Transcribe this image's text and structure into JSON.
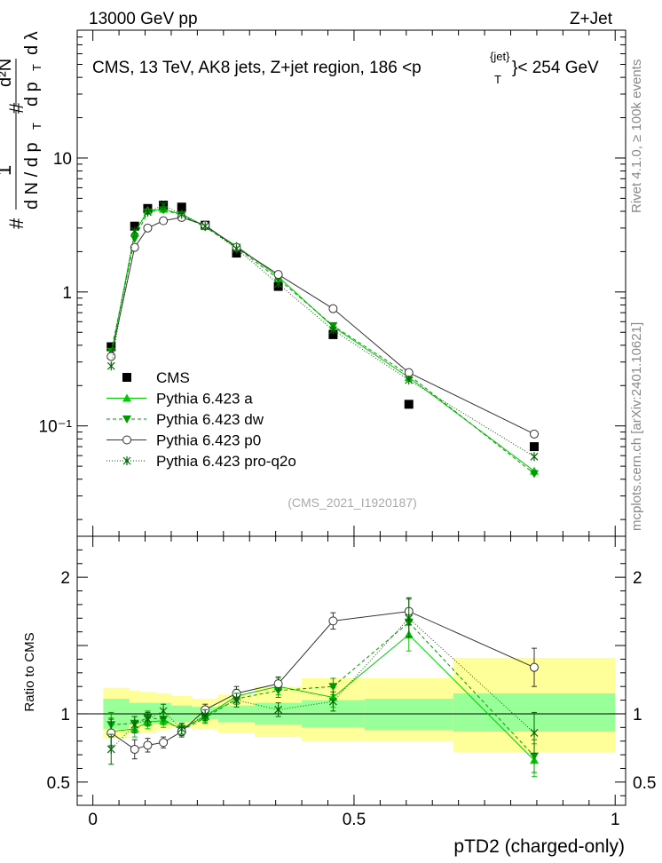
{
  "header": {
    "left": "13000 GeV pp",
    "right": "Z+Jet"
  },
  "side": {
    "rivet": "Rivet 4.1.0, ≥ 100k events",
    "mcplots": "mcplots.cern.ch [arXiv:2401.10621]"
  },
  "watermark": "(CMS_2021_I1920187)",
  "colors": {
    "cms": "#000000",
    "a": "#00cc00",
    "dw": "#009900",
    "p0": "#333333",
    "q2o": "#006600",
    "band_outer": "#ffff99",
    "band_inner": "#99ff99"
  },
  "chart_data": {
    "type": "line",
    "title": "CMS, 13 TeV, AK8 jets, Z+jet region, 186 <p_T^{jet} < 254 GeV",
    "title_parts": {
      "prefix": "CMS, 13 TeV, AK8 jets, Z+jet region, 186 <p",
      "sup": "{jet}",
      "sub": "T",
      "suffix": "}< 254 GeV"
    },
    "ylabel": "1/dN/dp_T # d^2N/dp_T dλ",
    "ylabel_parts": {
      "hash1": "#",
      "hash2": "#",
      "one": "1",
      "dN": "d N / d p",
      "T1": "T",
      "d2N": "d²N",
      "dpT": "d p",
      "T2": "T",
      "dlam": "d λ"
    },
    "xlabel": "pTD2 (charged-only)",
    "xlim": [
      -0.03,
      1.02
    ],
    "main": {
      "yscale": "log",
      "ylim": [
        0.015,
        90
      ],
      "yticks": [
        {
          "v": 0.1,
          "label": "10⁻¹"
        },
        {
          "v": 1,
          "label": "1"
        },
        {
          "v": 10,
          "label": "10"
        }
      ]
    },
    "ratio": {
      "ylabel": "Ratio to CMS",
      "ylim": [
        0.33,
        2.3
      ],
      "yticks": [
        {
          "v": 0.5,
          "label": "0.5"
        },
        {
          "v": 1,
          "label": "1"
        },
        {
          "v": 2,
          "label": "2"
        }
      ]
    },
    "xticks": [
      {
        "v": 0,
        "label": "0"
      },
      {
        "v": 0.5,
        "label": "0.5"
      },
      {
        "v": 1,
        "label": "1"
      }
    ],
    "x": [
      0.035,
      0.08,
      0.105,
      0.135,
      0.17,
      0.215,
      0.275,
      0.355,
      0.46,
      0.605,
      0.845
    ],
    "bins": [
      0.02,
      0.07,
      0.09,
      0.12,
      0.15,
      0.19,
      0.24,
      0.31,
      0.4,
      0.52,
      0.69,
      1.0
    ],
    "band_inner": [
      [
        0.89,
        1.11
      ],
      [
        0.93,
        1.08
      ],
      [
        0.93,
        1.08
      ],
      [
        0.93,
        1.08
      ],
      [
        0.94,
        1.06
      ],
      [
        0.96,
        1.05
      ],
      [
        0.94,
        1.06
      ],
      [
        0.92,
        1.08
      ],
      [
        0.9,
        1.1
      ],
      [
        0.88,
        1.11
      ],
      [
        0.87,
        1.15
      ]
    ],
    "band_outer": [
      [
        0.82,
        1.19
      ],
      [
        0.86,
        1.17
      ],
      [
        0.86,
        1.16
      ],
      [
        0.88,
        1.15
      ],
      [
        0.9,
        1.13
      ],
      [
        0.89,
        1.11
      ],
      [
        0.86,
        1.14
      ],
      [
        0.83,
        1.2
      ],
      [
        0.8,
        1.26
      ],
      [
        0.8,
        1.26
      ],
      [
        0.72,
        1.41
      ]
    ],
    "legend": [
      {
        "key": "cms",
        "label": "CMS"
      },
      {
        "key": "a",
        "label": "Pythia 6.423 a"
      },
      {
        "key": "dw",
        "label": "Pythia 6.423 dw"
      },
      {
        "key": "p0",
        "label": "Pythia 6.423 p0"
      },
      {
        "key": "q2o",
        "label": "Pythia 6.423 pro-q2o"
      }
    ],
    "series": [
      {
        "key": "cms",
        "name": "CMS",
        "values": [
          0.39,
          3.1,
          4.2,
          4.45,
          4.3,
          3.15,
          1.95,
          1.1,
          0.48,
          0.145,
          0.07
        ],
        "ratio": [
          1,
          1,
          1,
          1,
          1,
          1,
          1,
          1,
          1,
          1,
          1
        ],
        "ratio_err": [
          0,
          0,
          0,
          0,
          0,
          0,
          0,
          0,
          0,
          0,
          0
        ]
      },
      {
        "key": "a",
        "name": "Pythia 6.423 a",
        "values": [
          0.34,
          2.75,
          4.05,
          4.15,
          3.8,
          3.1,
          2.2,
          1.3,
          0.55,
          0.23,
          0.046
        ],
        "ratio": [
          0.87,
          0.89,
          0.94,
          0.95,
          0.89,
          0.98,
          1.13,
          1.2,
          1.12,
          1.58,
          0.66
        ],
        "ratio_err": [
          0.1,
          0.06,
          0.05,
          0.05,
          0.04,
          0.04,
          0.05,
          0.06,
          0.07,
          0.12,
          0.12
        ]
      },
      {
        "key": "dw",
        "name": "Pythia 6.423 dw",
        "values": [
          0.36,
          2.5,
          3.95,
          4.1,
          3.75,
          3.05,
          2.15,
          1.25,
          0.56,
          0.24,
          0.044
        ],
        "ratio": [
          0.92,
          0.93,
          0.97,
          0.96,
          0.88,
          0.97,
          1.11,
          1.17,
          1.2,
          1.67,
          0.69
        ],
        "ratio_err": [
          0.09,
          0.05,
          0.05,
          0.04,
          0.04,
          0.04,
          0.04,
          0.05,
          0.06,
          0.1,
          0.12
        ]
      },
      {
        "key": "p0",
        "name": "Pythia 6.423 p0",
        "values": [
          0.33,
          2.15,
          3.0,
          3.4,
          3.6,
          3.15,
          2.15,
          1.35,
          0.75,
          0.25,
          0.087
        ],
        "ratio": [
          0.86,
          0.74,
          0.77,
          0.79,
          0.87,
          1.03,
          1.15,
          1.22,
          1.68,
          1.75,
          1.34
        ],
        "ratio_err": [
          0.1,
          0.07,
          0.05,
          0.04,
          0.04,
          0.04,
          0.05,
          0.05,
          0.06,
          0.1,
          0.14
        ]
      },
      {
        "key": "q2o",
        "name": "Pythia 6.423 pro-q2o",
        "values": [
          0.28,
          2.85,
          3.95,
          4.45,
          3.8,
          3.1,
          2.1,
          1.15,
          0.52,
          0.22,
          0.059
        ],
        "ratio": [
          0.74,
          0.92,
          0.96,
          1.02,
          0.89,
          0.99,
          1.1,
          1.03,
          1.09,
          1.7,
          0.86
        ],
        "ratio_err": [
          0.11,
          0.06,
          0.05,
          0.05,
          0.04,
          0.04,
          0.05,
          0.05,
          0.07,
          0.14,
          0.15
        ]
      }
    ]
  }
}
